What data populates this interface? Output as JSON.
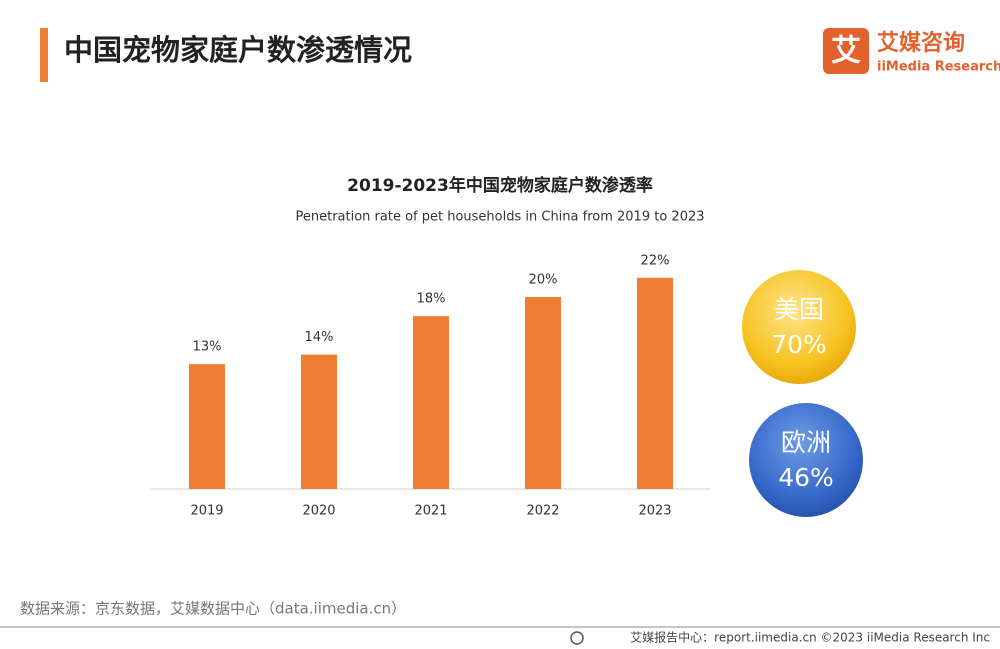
{
  "header": {
    "title": "中国宠物家庭户数渗透情况",
    "logo_mark": "艾",
    "logo_name": "艾媒咨询",
    "logo_sub": "iiMedia Research"
  },
  "chart_data": {
    "type": "bar",
    "title": "2019-2023年中国宠物家庭户数渗透率",
    "subtitle": "Penetration rate of pet households in China from 2019 to 2023",
    "categories": [
      "2019",
      "2020",
      "2021",
      "2022",
      "2023"
    ],
    "values": [
      13,
      14,
      18,
      20,
      22
    ],
    "value_labels": [
      "13%",
      "14%",
      "18%",
      "20%",
      "22%"
    ],
    "color": "#ed7d31"
  },
  "comparisons": [
    {
      "name": "美国",
      "label": "70%"
    },
    {
      "name": "欧洲",
      "label": "46%"
    }
  ],
  "source": "数据来源：京东数据，艾媒数据中心（data.iimedia.cn）",
  "footer": "艾媒报告中心：report.iimedia.cn   ©2023  iiMedia Research  Inc"
}
